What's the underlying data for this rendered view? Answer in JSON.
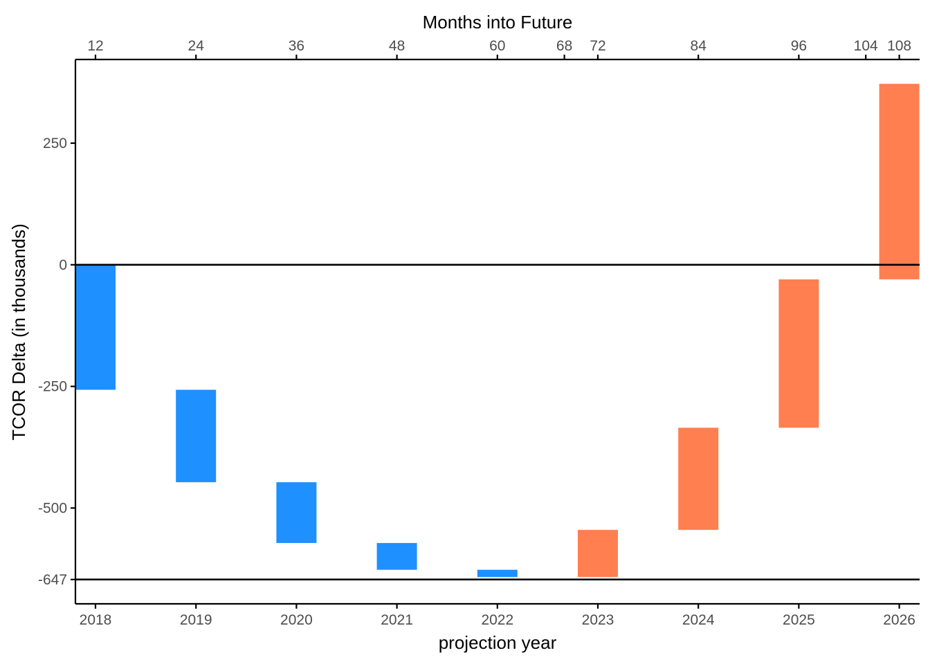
{
  "chart_data": {
    "type": "waterfall",
    "title": "",
    "xlabel": "projection year",
    "ylabel": "TCOR Delta (in thousands)",
    "secondary_xlabel": "Months into Future",
    "categories": [
      "2018",
      "2019",
      "2020",
      "2021",
      "2022",
      "2023",
      "2024",
      "2025",
      "2026"
    ],
    "bars": [
      {
        "start": 0,
        "end": -257
      },
      {
        "start": -257,
        "end": -447
      },
      {
        "start": -447,
        "end": -572
      },
      {
        "start": -572,
        "end": -627
      },
      {
        "start": -627,
        "end": -642
      },
      {
        "start": -642,
        "end": -545
      },
      {
        "start": -545,
        "end": -335
      },
      {
        "start": -335,
        "end": -30
      },
      {
        "start": -30,
        "end": 372
      }
    ],
    "ylim": [
      -697,
      422
    ],
    "y_ticks": [
      250,
      0,
      -250,
      -500,
      -647
    ],
    "y_tick_labels": [
      "250",
      "0",
      "-250",
      "-500",
      "-647"
    ],
    "secondary_x_ticks": [
      12,
      24,
      36,
      48,
      60,
      68,
      72,
      84,
      96,
      104,
      108
    ],
    "secondary_x_tick_labels": [
      "12",
      "24",
      "36",
      "48",
      "60",
      "68",
      "72",
      "84",
      "96",
      "104",
      "108"
    ],
    "reference_lines": [
      0,
      -647
    ],
    "colors": {
      "decrease": "#1E90FF",
      "increase": "#FF7F50"
    },
    "grid": false,
    "legend": "none"
  }
}
